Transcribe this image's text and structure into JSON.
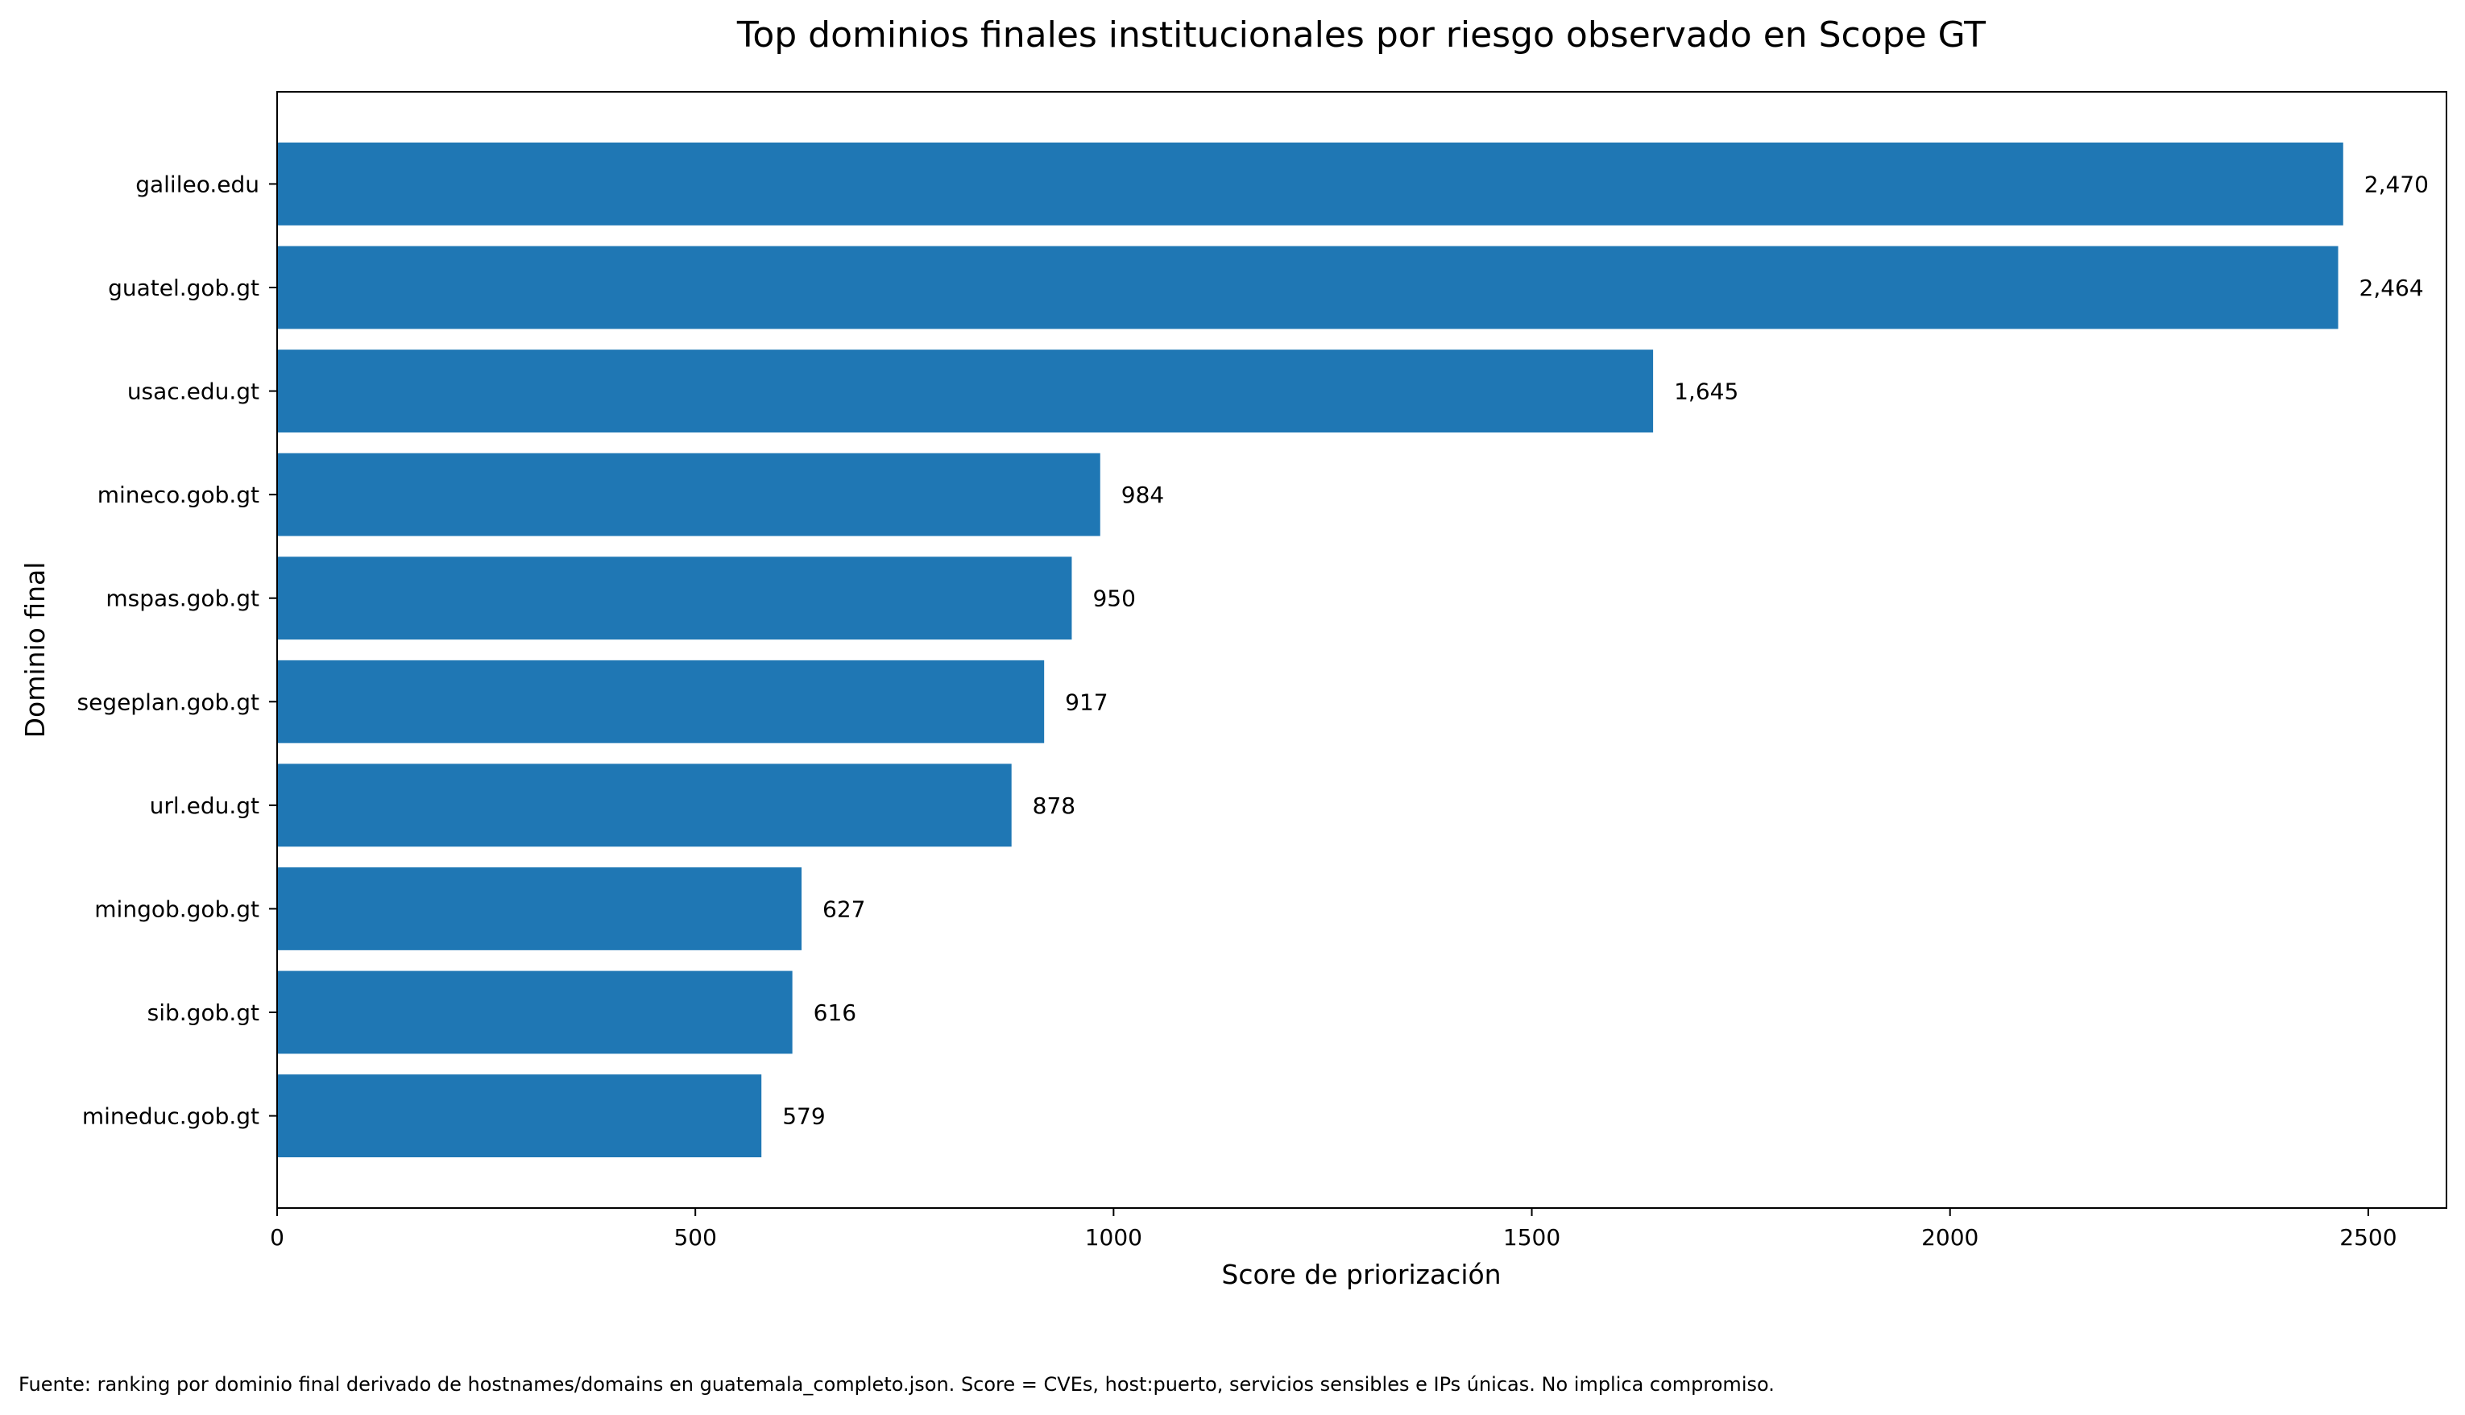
{
  "chart_data": {
    "type": "bar",
    "orientation": "horizontal",
    "title": "Top dominios finales institucionales por riesgo observado en Scope GT",
    "xlabel": "Score de priorización",
    "ylabel": "Dominio final",
    "categories": [
      "galileo.edu",
      "guatel.gob.gt",
      "usac.edu.gt",
      "mineco.gob.gt",
      "mspas.gob.gt",
      "segeplan.gob.gt",
      "url.edu.gt",
      "mingob.gob.gt",
      "sib.gob.gt",
      "mineduc.gob.gt"
    ],
    "values": [
      2470,
      2464,
      1645,
      984,
      950,
      917,
      878,
      627,
      616,
      579
    ],
    "value_labels": [
      "2,470",
      "2,464",
      "1,645",
      "984",
      "950",
      "917",
      "878",
      "627",
      "616",
      "579"
    ],
    "xticks": [
      "0",
      "500",
      "1000",
      "1500",
      "2000",
      "2500"
    ],
    "xlim": [
      0,
      2593.5
    ],
    "grid": false,
    "bar_color": "#1f77b4",
    "footnote": "Fuente: ranking por dominio final derivado de hostnames/domains en guatemala_completo.json. Score = CVEs, host:puerto, servicios sensibles e IPs únicas. No implica compromiso."
  }
}
